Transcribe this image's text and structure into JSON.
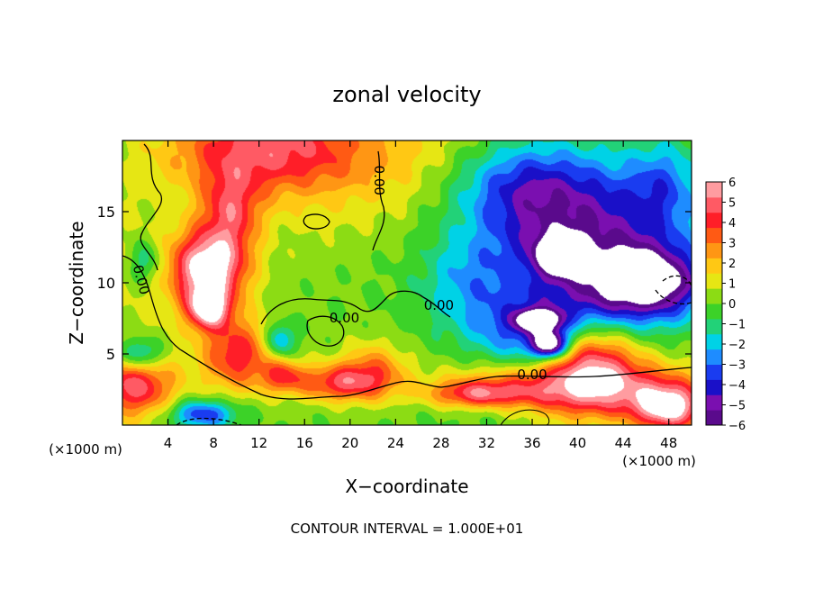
{
  "chart_data": {
    "type": "heatmap",
    "title": "zonal velocity",
    "xlabel": "X−coordinate",
    "ylabel": "Z−coordinate",
    "x_unit": "(×1000 m)",
    "y_unit": "(×1000 m)",
    "xlim": [
      0,
      50
    ],
    "ylim": [
      0,
      20
    ],
    "x_ticks": [
      4,
      8,
      12,
      16,
      20,
      24,
      28,
      32,
      36,
      40,
      44,
      48
    ],
    "y_ticks": [
      5,
      10,
      15
    ],
    "footer": "CONTOUR INTERVAL = 1.000E+01",
    "colorbar": {
      "min": -6,
      "max": 6,
      "labels": [
        "6",
        "5",
        "4",
        "3",
        "2",
        "1",
        "0",
        "−1",
        "−2",
        "−3",
        "−4",
        "−5",
        "−6"
      ],
      "colors": [
        "#5a0a8c",
        "#7a0fb0",
        "#1a10c8",
        "#1a3cf0",
        "#1e8cff",
        "#00d2e6",
        "#22d278",
        "#3cd228",
        "#8cdc14",
        "#e6e614",
        "#ffc814",
        "#ff9614",
        "#ff5a14",
        "#ff1e28",
        "#ff5a64",
        "#ff9ca0"
      ],
      "position": "right"
    },
    "grid": false,
    "contour_labels": [
      {
        "text": "0.00",
        "x": 1.6,
        "y": 10.2,
        "angle": 75
      },
      {
        "text": "0.00",
        "x": 19.5,
        "y": 7.5,
        "angle": 0
      },
      {
        "text": "0.00",
        "x": 27.8,
        "y": 8.4,
        "angle": 0
      },
      {
        "text": "0.00",
        "x": 36.0,
        "y": 3.5,
        "angle": 0
      },
      {
        "text": "0.00",
        "x": 22.5,
        "y": 17.2,
        "angle": 90
      }
    ],
    "field_blobs": [
      {
        "x": 0,
        "y": 10,
        "rx": 12,
        "ry": 11,
        "v": 0.8
      },
      {
        "x": 20,
        "y": 19,
        "rx": 12,
        "ry": 5,
        "v": 2
      },
      {
        "x": 12,
        "y": 19.5,
        "rx": 8,
        "ry": 3,
        "v": 3.5
      },
      {
        "x": 9.5,
        "y": 15,
        "rx": 2.5,
        "ry": 3,
        "v": 3.5
      },
      {
        "x": 7.5,
        "y": 11,
        "rx": 3.2,
        "ry": 2.6,
        "v": 6.5
      },
      {
        "x": 7.5,
        "y": 8.2,
        "rx": 1.8,
        "ry": 1.4,
        "v": 5.5
      },
      {
        "x": 10,
        "y": 5,
        "rx": 3,
        "ry": 2.5,
        "v": 4
      },
      {
        "x": 19,
        "y": 3,
        "rx": 4,
        "ry": 1.3,
        "v": 4
      },
      {
        "x": 14,
        "y": 3.5,
        "rx": 2,
        "ry": 1.2,
        "v": 3
      },
      {
        "x": 1,
        "y": 2.8,
        "rx": 3.5,
        "ry": 2.2,
        "v": 4.5
      },
      {
        "x": 1.5,
        "y": 5,
        "rx": 2,
        "ry": 1.2,
        "v": -3.5
      },
      {
        "x": 2,
        "y": 11.5,
        "rx": 1.5,
        "ry": 1.5,
        "v": -2
      },
      {
        "x": 7,
        "y": 0.8,
        "rx": 3,
        "ry": 1,
        "v": -4
      },
      {
        "x": 13.8,
        "y": 6,
        "rx": 1.3,
        "ry": 1.2,
        "v": -3
      },
      {
        "x": 22,
        "y": 4,
        "rx": 3,
        "ry": 2,
        "v": 2.5
      },
      {
        "x": 40,
        "y": 2.5,
        "rx": 10,
        "ry": 2.2,
        "v": 5.5
      },
      {
        "x": 41,
        "y": 5,
        "rx": 4,
        "ry": 2.5,
        "v": 5
      },
      {
        "x": 48,
        "y": 1.2,
        "rx": 3,
        "ry": 1.6,
        "v": 5.5
      },
      {
        "x": 33,
        "y": 1,
        "rx": 6,
        "ry": 1.2,
        "v": -1.5
      },
      {
        "x": 31,
        "y": 2.2,
        "rx": 4,
        "ry": 1,
        "v": 3.5
      },
      {
        "x": 40,
        "y": 13.5,
        "rx": 9,
        "ry": 5,
        "v": -5
      },
      {
        "x": 46,
        "y": 10,
        "rx": 5,
        "ry": 2.5,
        "v": -6.5
      },
      {
        "x": 38.5,
        "y": 12,
        "rx": 2,
        "ry": 1.3,
        "v": -6
      },
      {
        "x": 37,
        "y": 6.5,
        "rx": 6,
        "ry": 3,
        "v": -4
      },
      {
        "x": 36.5,
        "y": 7.4,
        "rx": 1.8,
        "ry": 0.7,
        "v": -6.5
      },
      {
        "x": 37.5,
        "y": 5.7,
        "rx": 1.5,
        "ry": 0.9,
        "v": -6.5
      },
      {
        "x": 47.5,
        "y": 17,
        "rx": 3,
        "ry": 3,
        "v": -2
      },
      {
        "x": 30,
        "y": 10,
        "rx": 4,
        "ry": 3,
        "v": -1.5
      },
      {
        "x": 35,
        "y": 17,
        "rx": 6,
        "ry": 3,
        "v": -2.5
      }
    ]
  }
}
